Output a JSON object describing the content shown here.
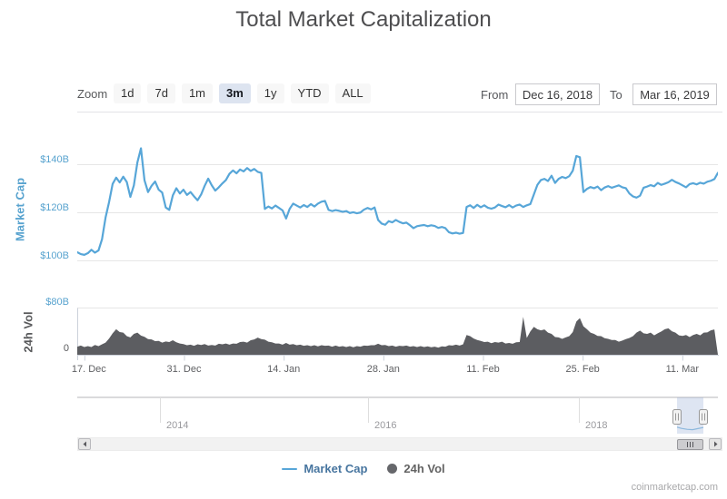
{
  "title": "Total Market Capitalization",
  "watermark": "coinmarketcap.com",
  "toolbar": {
    "zoom_label": "Zoom",
    "range_buttons": [
      "1d",
      "7d",
      "1m",
      "3m",
      "1y",
      "YTD",
      "ALL"
    ],
    "selected_button": "3m",
    "from_label": "From",
    "from_value": "Dec 16, 2018",
    "to_label": "To",
    "to_value": "Mar 16, 2019"
  },
  "axes": {
    "market_cap_title": "Market Cap",
    "market_cap_ticks": [
      "$140B",
      "$120B",
      "$100B"
    ],
    "vol_title": "24h Vol",
    "vol_ticks_top": "$80B",
    "vol_ticks_zero": "0",
    "x_ticks": [
      "17. Dec",
      "31. Dec",
      "14. Jan",
      "28. Jan",
      "11. Feb",
      "25. Feb",
      "11. Mar"
    ],
    "navigator_years": [
      "2014",
      "2016",
      "2018"
    ]
  },
  "legend": {
    "market_cap": "Market Cap",
    "vol": "24h Vol"
  },
  "colors": {
    "market_cap_line": "#57a6d8",
    "vol_fill": "#5c5d61",
    "grid": "#e6e6e6",
    "axis_line": "#ccd1da",
    "navigator_mask": "rgba(124,153,205,0.25)"
  },
  "chart_data": {
    "type": "line",
    "title": "Total Market Capitalization",
    "x_range": [
      "Dec 16, 2018",
      "Mar 16, 2019"
    ],
    "x_resolution_days": 0.5,
    "x_tick_days": [
      1,
      15,
      29,
      43,
      57,
      71,
      85
    ],
    "x_tick_labels": [
      "17. Dec",
      "31. Dec",
      "14. Jan",
      "28. Jan",
      "11. Feb",
      "25. Feb",
      "11. Mar"
    ],
    "series": [
      {
        "name": "Market Cap",
        "type": "line",
        "unit": "USD billions",
        "ylim": [
          93,
          154
        ],
        "y_ticks": [
          100,
          120,
          140
        ],
        "values": [
          103.6,
          102.8,
          102.5,
          103.2,
          104.6,
          103.4,
          104.3,
          109.0,
          118.0,
          124.5,
          132.0,
          134.6,
          132.6,
          135.0,
          132.8,
          126.6,
          131.4,
          141.0,
          146.8,
          133.5,
          128.6,
          131.2,
          133.0,
          129.6,
          128.4,
          122.2,
          121.2,
          127.2,
          130.2,
          128.0,
          129.6,
          127.4,
          128.6,
          126.8,
          125.2,
          127.6,
          131.2,
          134.2,
          131.4,
          129.2,
          130.6,
          132.2,
          133.6,
          136.2,
          137.6,
          136.4,
          138.0,
          137.2,
          138.6,
          137.4,
          138.2,
          137.0,
          136.6,
          121.6,
          122.6,
          121.8,
          123.0,
          122.0,
          121.0,
          117.6,
          121.6,
          123.8,
          123.0,
          122.2,
          123.2,
          122.4,
          123.6,
          122.6,
          123.8,
          124.6,
          124.9,
          121.2,
          120.7,
          121.1,
          120.8,
          120.4,
          120.7,
          119.9,
          120.2,
          119.8,
          120.1,
          121.3,
          122.0,
          121.4,
          122.2,
          117.0,
          115.5,
          115.0,
          116.5,
          116.0,
          117.0,
          116.2,
          115.6,
          115.9,
          114.8,
          113.6,
          114.4,
          114.7,
          114.9,
          114.4,
          114.8,
          114.5,
          113.7,
          114.1,
          113.6,
          111.9,
          111.4,
          111.7,
          111.3,
          111.6,
          122.4,
          123.1,
          122.0,
          123.3,
          122.3,
          123.1,
          122.1,
          121.7,
          122.2,
          123.4,
          122.8,
          122.3,
          123.2,
          122.2,
          123.0,
          123.4,
          122.4,
          123.1,
          123.6,
          127.6,
          131.6,
          133.6,
          134.1,
          133.2,
          135.4,
          132.4,
          134.1,
          134.9,
          134.4,
          135.2,
          137.5,
          143.6,
          143.1,
          128.6,
          129.9,
          130.7,
          130.2,
          130.9,
          129.4,
          130.5,
          131.1,
          130.4,
          130.9,
          131.4,
          130.6,
          130.2,
          128.0,
          126.8,
          126.3,
          127.1,
          130.4,
          130.9,
          131.5,
          131.0,
          132.4,
          131.6,
          132.1,
          132.7,
          133.7,
          132.8,
          132.2,
          131.4,
          130.6,
          131.9,
          132.3,
          131.8,
          132.5,
          132.1,
          132.9,
          133.3,
          134.0,
          136.6
        ]
      },
      {
        "name": "24h Vol",
        "type": "area",
        "unit": "USD billions",
        "ylim": [
          0,
          80
        ],
        "y_ticks": [
          0,
          80
        ],
        "values": [
          13,
          15,
          12.5,
          14,
          12.5,
          16,
          14,
          17,
          20,
          27,
          36,
          43,
          38,
          37,
          31,
          29,
          35,
          37,
          32,
          30,
          26,
          25.5,
          22.5,
          23,
          20,
          22,
          21,
          24,
          20.5,
          18.5,
          17.5,
          15.5,
          16.5,
          14.5,
          17,
          16,
          17.5,
          15,
          16,
          15,
          18,
          17,
          18.5,
          16.5,
          18.5,
          18,
          21,
          21.5,
          20,
          24,
          25.5,
          28.5,
          26,
          25,
          21.5,
          20.5,
          18.5,
          18.5,
          16.5,
          19.5,
          16.5,
          17.5,
          15.5,
          16.5,
          14.5,
          15.5,
          14,
          15.5,
          13.5,
          15.5,
          14.5,
          15,
          13,
          15,
          13,
          14,
          12.5,
          14,
          12,
          14,
          13,
          15,
          14.5,
          15.5,
          15.5,
          18,
          15.5,
          16,
          14,
          15,
          13,
          14.5,
          14,
          15,
          13,
          14,
          12.5,
          14,
          12.5,
          13.5,
          12,
          13,
          11.5,
          13.5,
          13,
          15.5,
          15,
          16.5,
          15,
          17,
          33,
          31,
          27,
          24.5,
          23,
          21,
          21.5,
          19,
          21,
          20,
          21.5,
          18.5,
          19.5,
          18,
          20.5,
          21,
          64,
          28,
          39,
          47,
          43,
          41,
          42.5,
          37,
          35,
          29.5,
          29,
          26.5,
          29,
          31,
          38,
          56,
          62,
          48,
          43,
          37,
          35,
          31.5,
          31,
          27.5,
          26.5,
          24.5,
          24.5,
          21.5,
          23.5,
          26,
          28,
          31,
          37,
          40.5,
          36,
          35,
          37,
          32.5,
          36,
          39,
          43,
          44.5,
          39.5,
          37,
          32.5,
          31.5,
          33,
          29.5,
          33,
          35,
          32.5,
          37,
          37.5,
          41,
          42.5
        ]
      }
    ]
  }
}
